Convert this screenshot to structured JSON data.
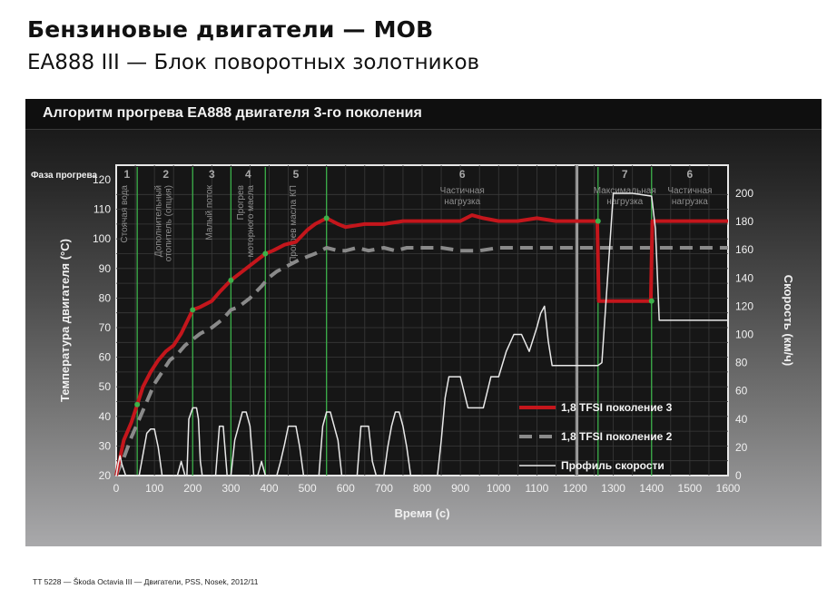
{
  "header": {
    "title": "Бензиновые двигатели — MOB",
    "subtitle": "EA888 III — Блок поворотных золотников"
  },
  "footer": {
    "text": "TT 5228 — Škoda Octavia III — Двигатели, PSS, Nosek, 2012/11"
  },
  "colors": {
    "gen3": "#c4161c",
    "gen2": "#8a8a8a",
    "speed": "#e9e9e9",
    "phase_line": "#3cb04a"
  },
  "chart_data": {
    "type": "line",
    "title": "Алгоритм прогрева EA888 двигателя 3-го поколения",
    "xlabel": "Время (с)",
    "ylabel": "Температура двигателя (°С)",
    "y2label": "Скорость (км/ч)",
    "phase_header": "Фаза прогрева",
    "xlim": [
      0,
      1600
    ],
    "ylim": [
      20,
      120
    ],
    "y2lim": [
      0,
      210
    ],
    "x_ticks": [
      "0",
      "100",
      "200",
      "300",
      "400",
      "500",
      "600",
      "700",
      "800",
      "900",
      "1000",
      "1100",
      "1200",
      "1300",
      "1400",
      "1500",
      "1600"
    ],
    "y_ticks": [
      "20",
      "30",
      "40",
      "50",
      "60",
      "70",
      "80",
      "90",
      "100",
      "110",
      "120"
    ],
    "y2_ticks": [
      "0",
      "20",
      "40",
      "60",
      "80",
      "100",
      "120",
      "140",
      "160",
      "180",
      "200"
    ],
    "grid": true,
    "legend_position": "bottom-right",
    "phase_lines": [
      55,
      200,
      300,
      390,
      550,
      1260,
      1400
    ],
    "phases": [
      {
        "num": "1",
        "x": 28,
        "label": "Стоячая вода"
      },
      {
        "num": "2",
        "x": 130,
        "label": "Дополнительный отопитель (опция)"
      },
      {
        "num": "3",
        "x": 250,
        "label": "Малый поток"
      },
      {
        "num": "4",
        "x": 345,
        "label": "Прогрев моторного масла"
      },
      {
        "num": "5",
        "x": 470,
        "label": "Прогрев масла КП"
      },
      {
        "num": "6",
        "x": 905,
        "label": "Частичная нагрузка"
      },
      {
        "num": "7",
        "x": 1330,
        "label": "Максимальная нагрузка"
      },
      {
        "num": "6",
        "x": 1500,
        "label": "Частичная нагрузка"
      }
    ],
    "series": [
      {
        "name": "1,8 TFSI поколение 3",
        "axis": "left",
        "x": [
          0,
          20,
          40,
          55,
          70,
          90,
          110,
          130,
          150,
          170,
          200,
          220,
          250,
          270,
          300,
          320,
          340,
          360,
          390,
          410,
          440,
          470,
          500,
          520,
          550,
          580,
          600,
          650,
          700,
          750,
          800,
          850,
          900,
          930,
          960,
          1000,
          1050,
          1100,
          1150,
          1200,
          1250,
          1258,
          1262,
          1300,
          1350,
          1398,
          1402,
          1450,
          1500,
          1550,
          1600
        ],
        "y": [
          20,
          32,
          38,
          44,
          50,
          55,
          59,
          62,
          64,
          68,
          76,
          77,
          79,
          82,
          86,
          88,
          90,
          92,
          95,
          96,
          98,
          99,
          103,
          105,
          107,
          105,
          104,
          105,
          105,
          106,
          106,
          106,
          106,
          108,
          107,
          106,
          106,
          107,
          106,
          106,
          106,
          106,
          79,
          79,
          79,
          79,
          106,
          106,
          106,
          106,
          106
        ]
      },
      {
        "name": "1,8 TFSI поколение 2",
        "axis": "left",
        "x": [
          0,
          20,
          40,
          60,
          80,
          100,
          120,
          140,
          160,
          180,
          200,
          220,
          250,
          280,
          300,
          320,
          350,
          380,
          400,
          420,
          450,
          480,
          500,
          520,
          550,
          580,
          600,
          630,
          660,
          700,
          730,
          760,
          800,
          850,
          900,
          950,
          1000,
          1100,
          1200,
          1300,
          1400,
          1500,
          1600
        ],
        "y": [
          20,
          26,
          33,
          39,
          45,
          51,
          55,
          59,
          61,
          64,
          66,
          68,
          70,
          73,
          76,
          77,
          80,
          84,
          87,
          89,
          91,
          93,
          94,
          95,
          97,
          96,
          96,
          97,
          96,
          97,
          96,
          97,
          97,
          97,
          96,
          96,
          97,
          97,
          97,
          97,
          97,
          97,
          97
        ]
      },
      {
        "name": "Профиль скорости",
        "axis": "right",
        "x": [
          0,
          5,
          10,
          15,
          25,
          30,
          40,
          50,
          60,
          70,
          80,
          90,
          100,
          110,
          120,
          130,
          140,
          150,
          160,
          165,
          170,
          175,
          180,
          185,
          190,
          200,
          210,
          215,
          220,
          225,
          230,
          250,
          260,
          270,
          280,
          290,
          300,
          310,
          320,
          330,
          340,
          350,
          360,
          370,
          380,
          390,
          400,
          410,
          420,
          430,
          440,
          450,
          460,
          470,
          480,
          490,
          500,
          510,
          520,
          530,
          540,
          550,
          560,
          570,
          580,
          590,
          600,
          610,
          620,
          630,
          640,
          650,
          660,
          670,
          680,
          690,
          700,
          710,
          720,
          730,
          740,
          750,
          760,
          770,
          780,
          790,
          800,
          810,
          820,
          830,
          840,
          850,
          860,
          870,
          880,
          890,
          900,
          920,
          940,
          960,
          980,
          1000,
          1020,
          1040,
          1060,
          1080,
          1100,
          1110,
          1120,
          1130,
          1140,
          1150,
          1200,
          1240,
          1250,
          1260,
          1270,
          1280,
          1300,
          1350,
          1400,
          1410,
          1420,
          1440,
          1450,
          1500,
          1550,
          1600
        ],
        "y": [
          0,
          8,
          14,
          8,
          0,
          0,
          0,
          0,
          0,
          15,
          30,
          33,
          33,
          20,
          0,
          0,
          0,
          0,
          0,
          5,
          10,
          5,
          0,
          0,
          40,
          48,
          48,
          40,
          10,
          0,
          0,
          0,
          0,
          35,
          35,
          0,
          0,
          25,
          35,
          45,
          45,
          35,
          0,
          0,
          10,
          0,
          0,
          0,
          0,
          10,
          22,
          35,
          35,
          35,
          20,
          0,
          0,
          0,
          0,
          0,
          35,
          45,
          45,
          35,
          25,
          0,
          0,
          0,
          0,
          0,
          35,
          35,
          35,
          10,
          0,
          0,
          0,
          20,
          35,
          45,
          45,
          35,
          20,
          0,
          0,
          0,
          0,
          0,
          0,
          0,
          0,
          25,
          55,
          70,
          70,
          70,
          70,
          48,
          48,
          48,
          70,
          70,
          88,
          100,
          100,
          88,
          105,
          115,
          120,
          95,
          78,
          78,
          78,
          78,
          78,
          78,
          80,
          120,
          200,
          200,
          198,
          175,
          110,
          110,
          110,
          110,
          110,
          110
        ]
      }
    ]
  }
}
